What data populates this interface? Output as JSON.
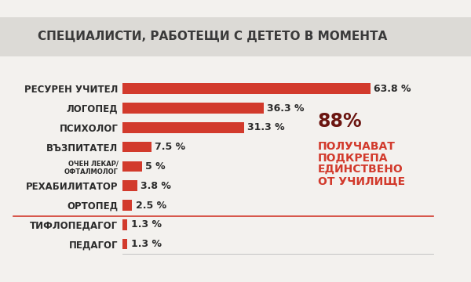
{
  "chart_data": {
    "type": "bar",
    "orientation": "horizontal",
    "title": "СПЕЦИАЛИСТИ, РАБОТЕЩИ С ДЕТЕТО В МОМЕНТА",
    "categories": [
      "РЕСУРЕН УЧИТЕЛ",
      "ЛОГОПЕД",
      "ПСИХОЛОГ",
      "ВЪЗПИТАТЕЛ",
      "ОЧЕН ЛЕКАР/ОФТАЛМОЛОГ",
      "РЕХАБИЛИТАТОР",
      "ОРТОПЕД",
      "ТИФЛОПЕДАГОГ",
      "ПЕДАГОГ"
    ],
    "values": [
      63.8,
      36.3,
      31.3,
      7.5,
      5,
      3.8,
      2.5,
      1.3,
      1.3
    ],
    "value_labels": [
      "63.8 %",
      "36.3 %",
      "31.3 %",
      "7.5 %",
      "5 %",
      "3.8 %",
      "2.5 %",
      "1.3 %",
      "1.3 %"
    ],
    "data_labels": true,
    "tick_labels": "y",
    "color": "#d23a2c",
    "xlim": [
      0,
      80
    ],
    "xticks": [],
    "grid": false,
    "annotations": [
      "88%",
      "ПОЛУЧАВАТ ПОДКРЕПА ЕДИНСТВЕНО ОТ УЧИЛИЩЕ"
    ]
  }
}
